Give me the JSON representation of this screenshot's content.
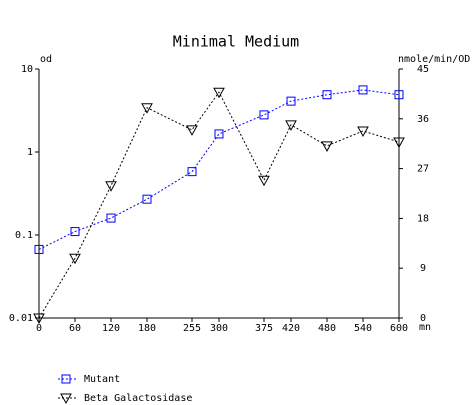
{
  "chart_data": {
    "type": "line",
    "title": "Minimal Medium",
    "ylabel": "od",
    "y2label": "nmole/min/OD",
    "xlabel": "mn",
    "x": [
      0,
      60,
      120,
      180,
      255,
      300,
      375,
      420,
      480,
      540,
      600
    ],
    "xlim": [
      0,
      600
    ],
    "xticks": [
      0,
      60,
      120,
      180,
      255,
      300,
      375,
      420,
      480,
      540,
      600
    ],
    "ylog": true,
    "ylim": [
      0.01,
      10
    ],
    "yticks": [
      0.01,
      0.1,
      1,
      10
    ],
    "y2lim": [
      0,
      45
    ],
    "y2ticks": [
      0,
      9,
      18,
      27,
      36,
      45
    ],
    "legend": "bottom-left",
    "series": [
      {
        "name": "Mutant",
        "color": "#0000ff",
        "marker": "square",
        "values": [
          0.067,
          0.11,
          0.16,
          0.27,
          0.58,
          1.65,
          2.8,
          4.1,
          4.9,
          5.6,
          4.9
        ]
      },
      {
        "name": "Beta Galactosidase",
        "color": "#000000",
        "marker": "triangle",
        "axis": "y2",
        "values": [
          0,
          10.8,
          23.9,
          38.0,
          34.0,
          40.8,
          24.9,
          34.9,
          31.1,
          33.8,
          31.8
        ]
      }
    ]
  }
}
